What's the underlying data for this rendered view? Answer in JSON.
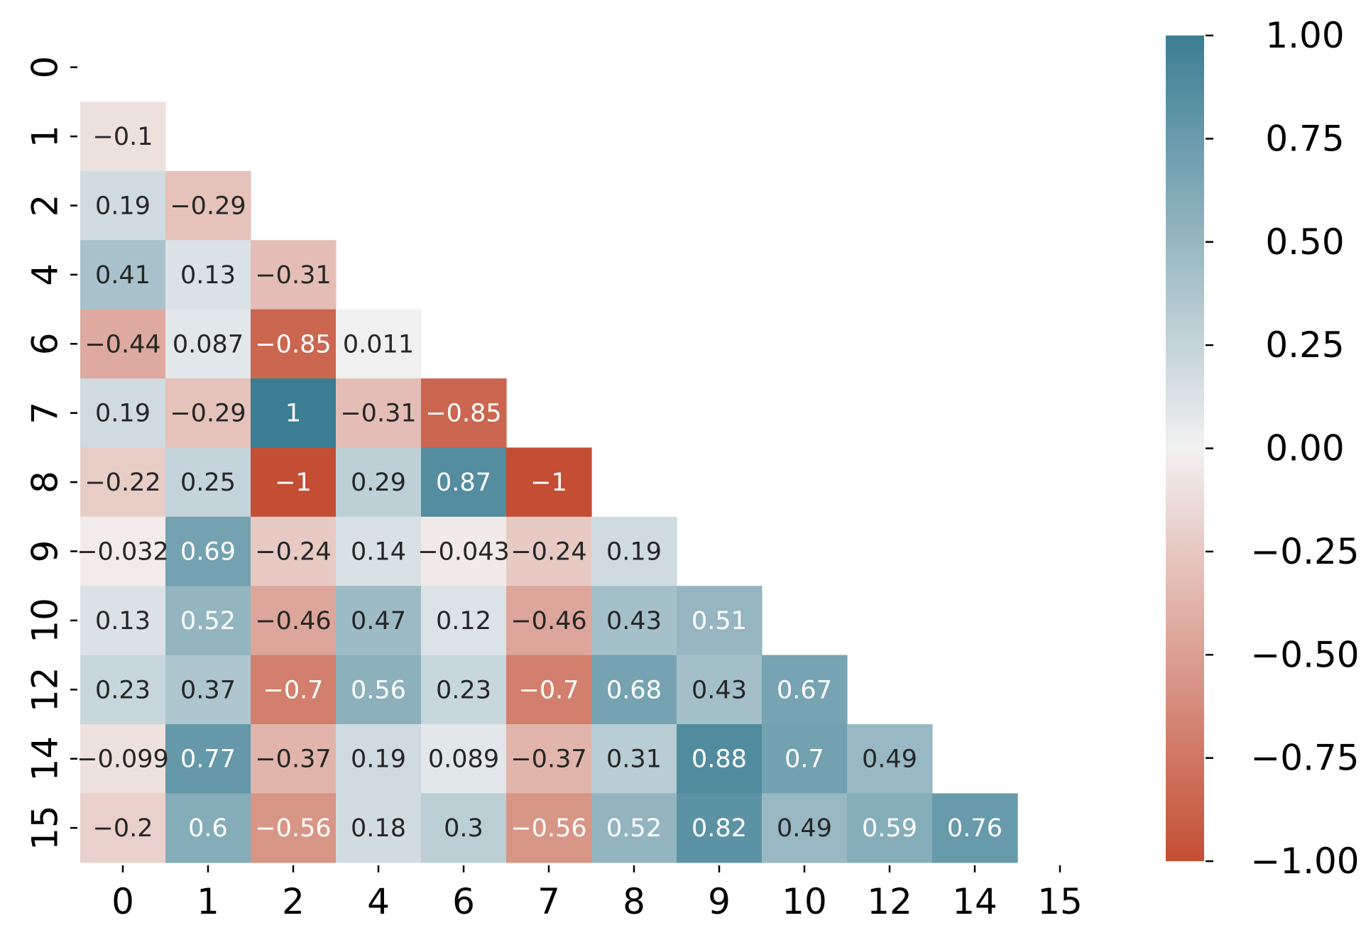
{
  "chart_data": {
    "type": "heatmap",
    "title": "",
    "xlabel": "",
    "ylabel": "",
    "row_labels": [
      "0",
      "1",
      "2",
      "4",
      "6",
      "7",
      "8",
      "9",
      "10",
      "12",
      "14",
      "15"
    ],
    "col_labels": [
      "0",
      "1",
      "2",
      "4",
      "6",
      "7",
      "8",
      "9",
      "10",
      "12",
      "14",
      "15"
    ],
    "mask": "upper-triangle-including-diagonal",
    "values": [
      [],
      [
        -0.1
      ],
      [
        0.19,
        -0.29
      ],
      [
        0.41,
        0.13,
        -0.31
      ],
      [
        -0.44,
        0.087,
        -0.85,
        0.011
      ],
      [
        0.19,
        -0.29,
        1,
        -0.31,
        -0.85
      ],
      [
        -0.22,
        0.25,
        -1,
        0.29,
        0.87,
        -1
      ],
      [
        -0.032,
        0.69,
        -0.24,
        0.14,
        -0.043,
        -0.24,
        0.19
      ],
      [
        0.13,
        0.52,
        -0.46,
        0.47,
        0.12,
        -0.46,
        0.43,
        0.51
      ],
      [
        0.23,
        0.37,
        -0.7,
        0.56,
        0.23,
        -0.7,
        0.68,
        0.43,
        0.67
      ],
      [
        -0.099,
        0.77,
        -0.37,
        0.19,
        0.089,
        -0.37,
        0.31,
        0.88,
        0.7,
        0.49
      ],
      [
        -0.2,
        0.6,
        -0.56,
        0.18,
        0.3,
        -0.56,
        0.52,
        0.82,
        0.49,
        0.59,
        0.76
      ]
    ],
    "colorbar": {
      "vmin": -1,
      "vmax": 1,
      "ticks": [
        1.0,
        0.75,
        0.5,
        0.25,
        0.0,
        -0.25,
        -0.5,
        -0.75,
        -1.0
      ],
      "tick_labels": [
        "1.00",
        "0.75",
        "0.50",
        "0.25",
        "0.00",
        "−0.25",
        "−0.50",
        "−0.75",
        "−1.00"
      ]
    },
    "colors": {
      "negative": "#c44e34",
      "neutral": "#f2f1f1",
      "positive": "#3b7e93",
      "text_dark": "#262626",
      "text_light": "#ffffff"
    }
  }
}
